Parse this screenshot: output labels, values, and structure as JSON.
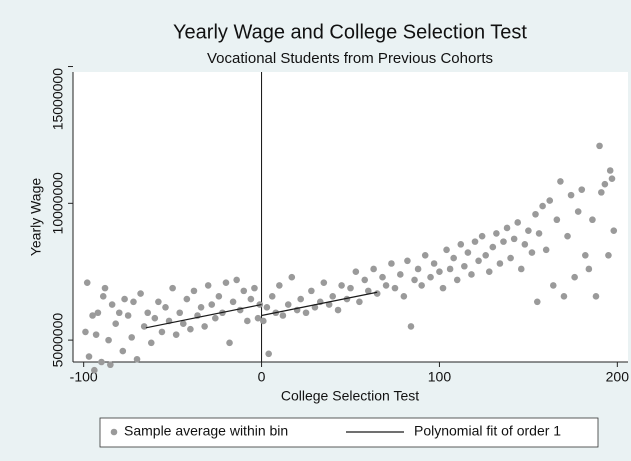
{
  "chart_data": {
    "type": "scatter",
    "title": "Yearly Wage and College Selection Test",
    "subtitle": "Vocational Students from Previous Cohorts",
    "x_label": "College Selection Test",
    "y_label": "Yearly Wage",
    "xlim": [
      -106,
      206
    ],
    "ylim": [
      4200000,
      14800000
    ],
    "xticks": [
      -100,
      0,
      100,
      200
    ],
    "yticks": [
      5000000,
      10000000,
      15000000
    ],
    "grid": false,
    "cutoff": 0,
    "series": [
      {
        "name": "Sample average within bin",
        "color": "#9a9a9a",
        "x": [
          -99,
          -98,
          -97,
          -95,
          -94,
          -93,
          -92,
          -90,
          -89,
          -88,
          -86,
          -85,
          -84,
          -82,
          -80,
          -78,
          -77,
          -75,
          -73,
          -72,
          -70,
          -68,
          -66,
          -64,
          -62,
          -60,
          -58,
          -56,
          -54,
          -52,
          -50,
          -48,
          -46,
          -44,
          -42,
          -40,
          -38,
          -36,
          -34,
          -32,
          -30,
          -28,
          -26,
          -24,
          -22,
          -20,
          -18,
          -16,
          -14,
          -12,
          -10,
          -8,
          -6,
          -4,
          -2,
          -1,
          1,
          3,
          4,
          6,
          8,
          10,
          12,
          15,
          17,
          20,
          22,
          25,
          28,
          30,
          33,
          35,
          38,
          40,
          43,
          45,
          48,
          50,
          53,
          55,
          58,
          60,
          63,
          65,
          68,
          70,
          73,
          75,
          78,
          80,
          82,
          84,
          86,
          88,
          90,
          92,
          95,
          97,
          100,
          102,
          104,
          106,
          108,
          110,
          112,
          114,
          116,
          118,
          120,
          122,
          124,
          126,
          128,
          130,
          132,
          134,
          136,
          138,
          140,
          142,
          144,
          146,
          148,
          150,
          152,
          154,
          155,
          156,
          158,
          160,
          162,
          164,
          166,
          168,
          170,
          172,
          174,
          176,
          178,
          180,
          182,
          184,
          186,
          188,
          190,
          191,
          193,
          195,
          196,
          197,
          198
        ],
        "values": [
          5300000,
          7100000,
          4400000,
          5900000,
          3900000,
          5200000,
          6000000,
          4200000,
          6600000,
          6900000,
          5000000,
          4100000,
          6300000,
          5600000,
          6000000,
          4600000,
          6500000,
          5900000,
          5100000,
          6400000,
          4300000,
          6700000,
          5500000,
          6000000,
          4900000,
          5800000,
          6400000,
          5300000,
          6200000,
          5700000,
          6900000,
          5200000,
          6000000,
          5600000,
          6500000,
          5400000,
          6800000,
          5900000,
          6200000,
          5500000,
          7000000,
          6300000,
          5800000,
          6600000,
          6000000,
          7100000,
          4900000,
          6400000,
          7200000,
          6100000,
          6800000,
          5700000,
          6500000,
          6900000,
          5800000,
          6300000,
          5700000,
          6200000,
          4500000,
          6600000,
          6000000,
          7000000,
          5900000,
          6300000,
          7300000,
          6100000,
          6500000,
          6000000,
          6800000,
          6200000,
          6400000,
          7100000,
          6300000,
          6600000,
          6100000,
          7000000,
          6500000,
          6900000,
          7500000,
          6400000,
          7200000,
          6800000,
          7600000,
          6700000,
          7300000,
          7000000,
          7800000,
          6900000,
          7400000,
          6600000,
          7900000,
          5500000,
          7200000,
          7600000,
          7000000,
          8100000,
          7300000,
          7800000,
          7500000,
          6900000,
          8300000,
          7600000,
          8000000,
          7200000,
          8500000,
          7700000,
          8200000,
          7400000,
          8600000,
          7900000,
          8800000,
          8100000,
          7500000,
          8400000,
          8900000,
          7800000,
          8600000,
          9100000,
          8000000,
          8700000,
          9300000,
          7600000,
          8500000,
          9000000,
          8200000,
          9600000,
          6400000,
          8900000,
          9900000,
          8300000,
          10100000,
          7000000,
          9400000,
          10800000,
          6600000,
          8800000,
          10300000,
          7300000,
          9700000,
          10500000,
          8100000,
          7600000,
          9400000,
          6600000,
          12100000,
          10400000,
          10700000,
          8100000,
          11200000,
          10900000,
          9000000
        ]
      }
    ],
    "fit": {
      "name": "Polynomial fit of order 1",
      "color": "#1a1a1a",
      "segments": [
        {
          "x": [
            -65,
            0
          ],
          "values": [
            5450000,
            6300000
          ]
        },
        {
          "x": [
            0,
            65
          ],
          "values": [
            5900000,
            6750000
          ]
        }
      ]
    }
  }
}
